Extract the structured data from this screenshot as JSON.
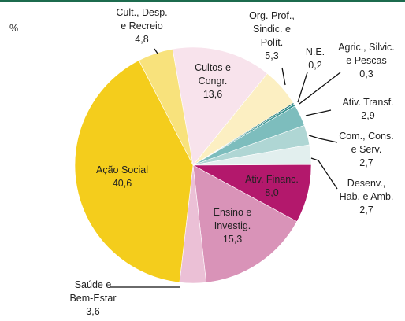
{
  "chart_data": {
    "type": "pie",
    "unit_label": "%",
    "categories": [
      "Cultos e\nCongr.",
      "Org. Prof.,\nSindic. e\nPolít.",
      "N.E.",
      "Agric., Silvic.\ne Pescas",
      "Ativ. Transf.",
      "Com., Cons.\ne Serv.",
      "Desenv.,\nHab. e Amb.",
      "Ativ. Financ.",
      "Ensino e\nInvestig.",
      "Saúde e\nBem-Estar",
      "Ação Social",
      "Cult., Desp.\ne Recreio"
    ],
    "values": [
      13.6,
      5.3,
      0.2,
      0.3,
      2.9,
      2.7,
      2.7,
      8.0,
      15.3,
      3.6,
      40.6,
      4.8
    ],
    "value_labels": [
      "13,6",
      "5,3",
      "0,2",
      "0,3",
      "2,9",
      "2,7",
      "2,7",
      "8,0",
      "15,3",
      "3,6",
      "40,6",
      "4,8"
    ],
    "colors": [
      "#f8e3ec",
      "#fcefc2",
      "#1d7472",
      "#3a9592",
      "#7dbdbd",
      "#afd6d4",
      "#e2efee",
      "#b3186c",
      "#d993b8",
      "#ebc0d6",
      "#f4cd1c",
      "#f8e27c"
    ]
  }
}
